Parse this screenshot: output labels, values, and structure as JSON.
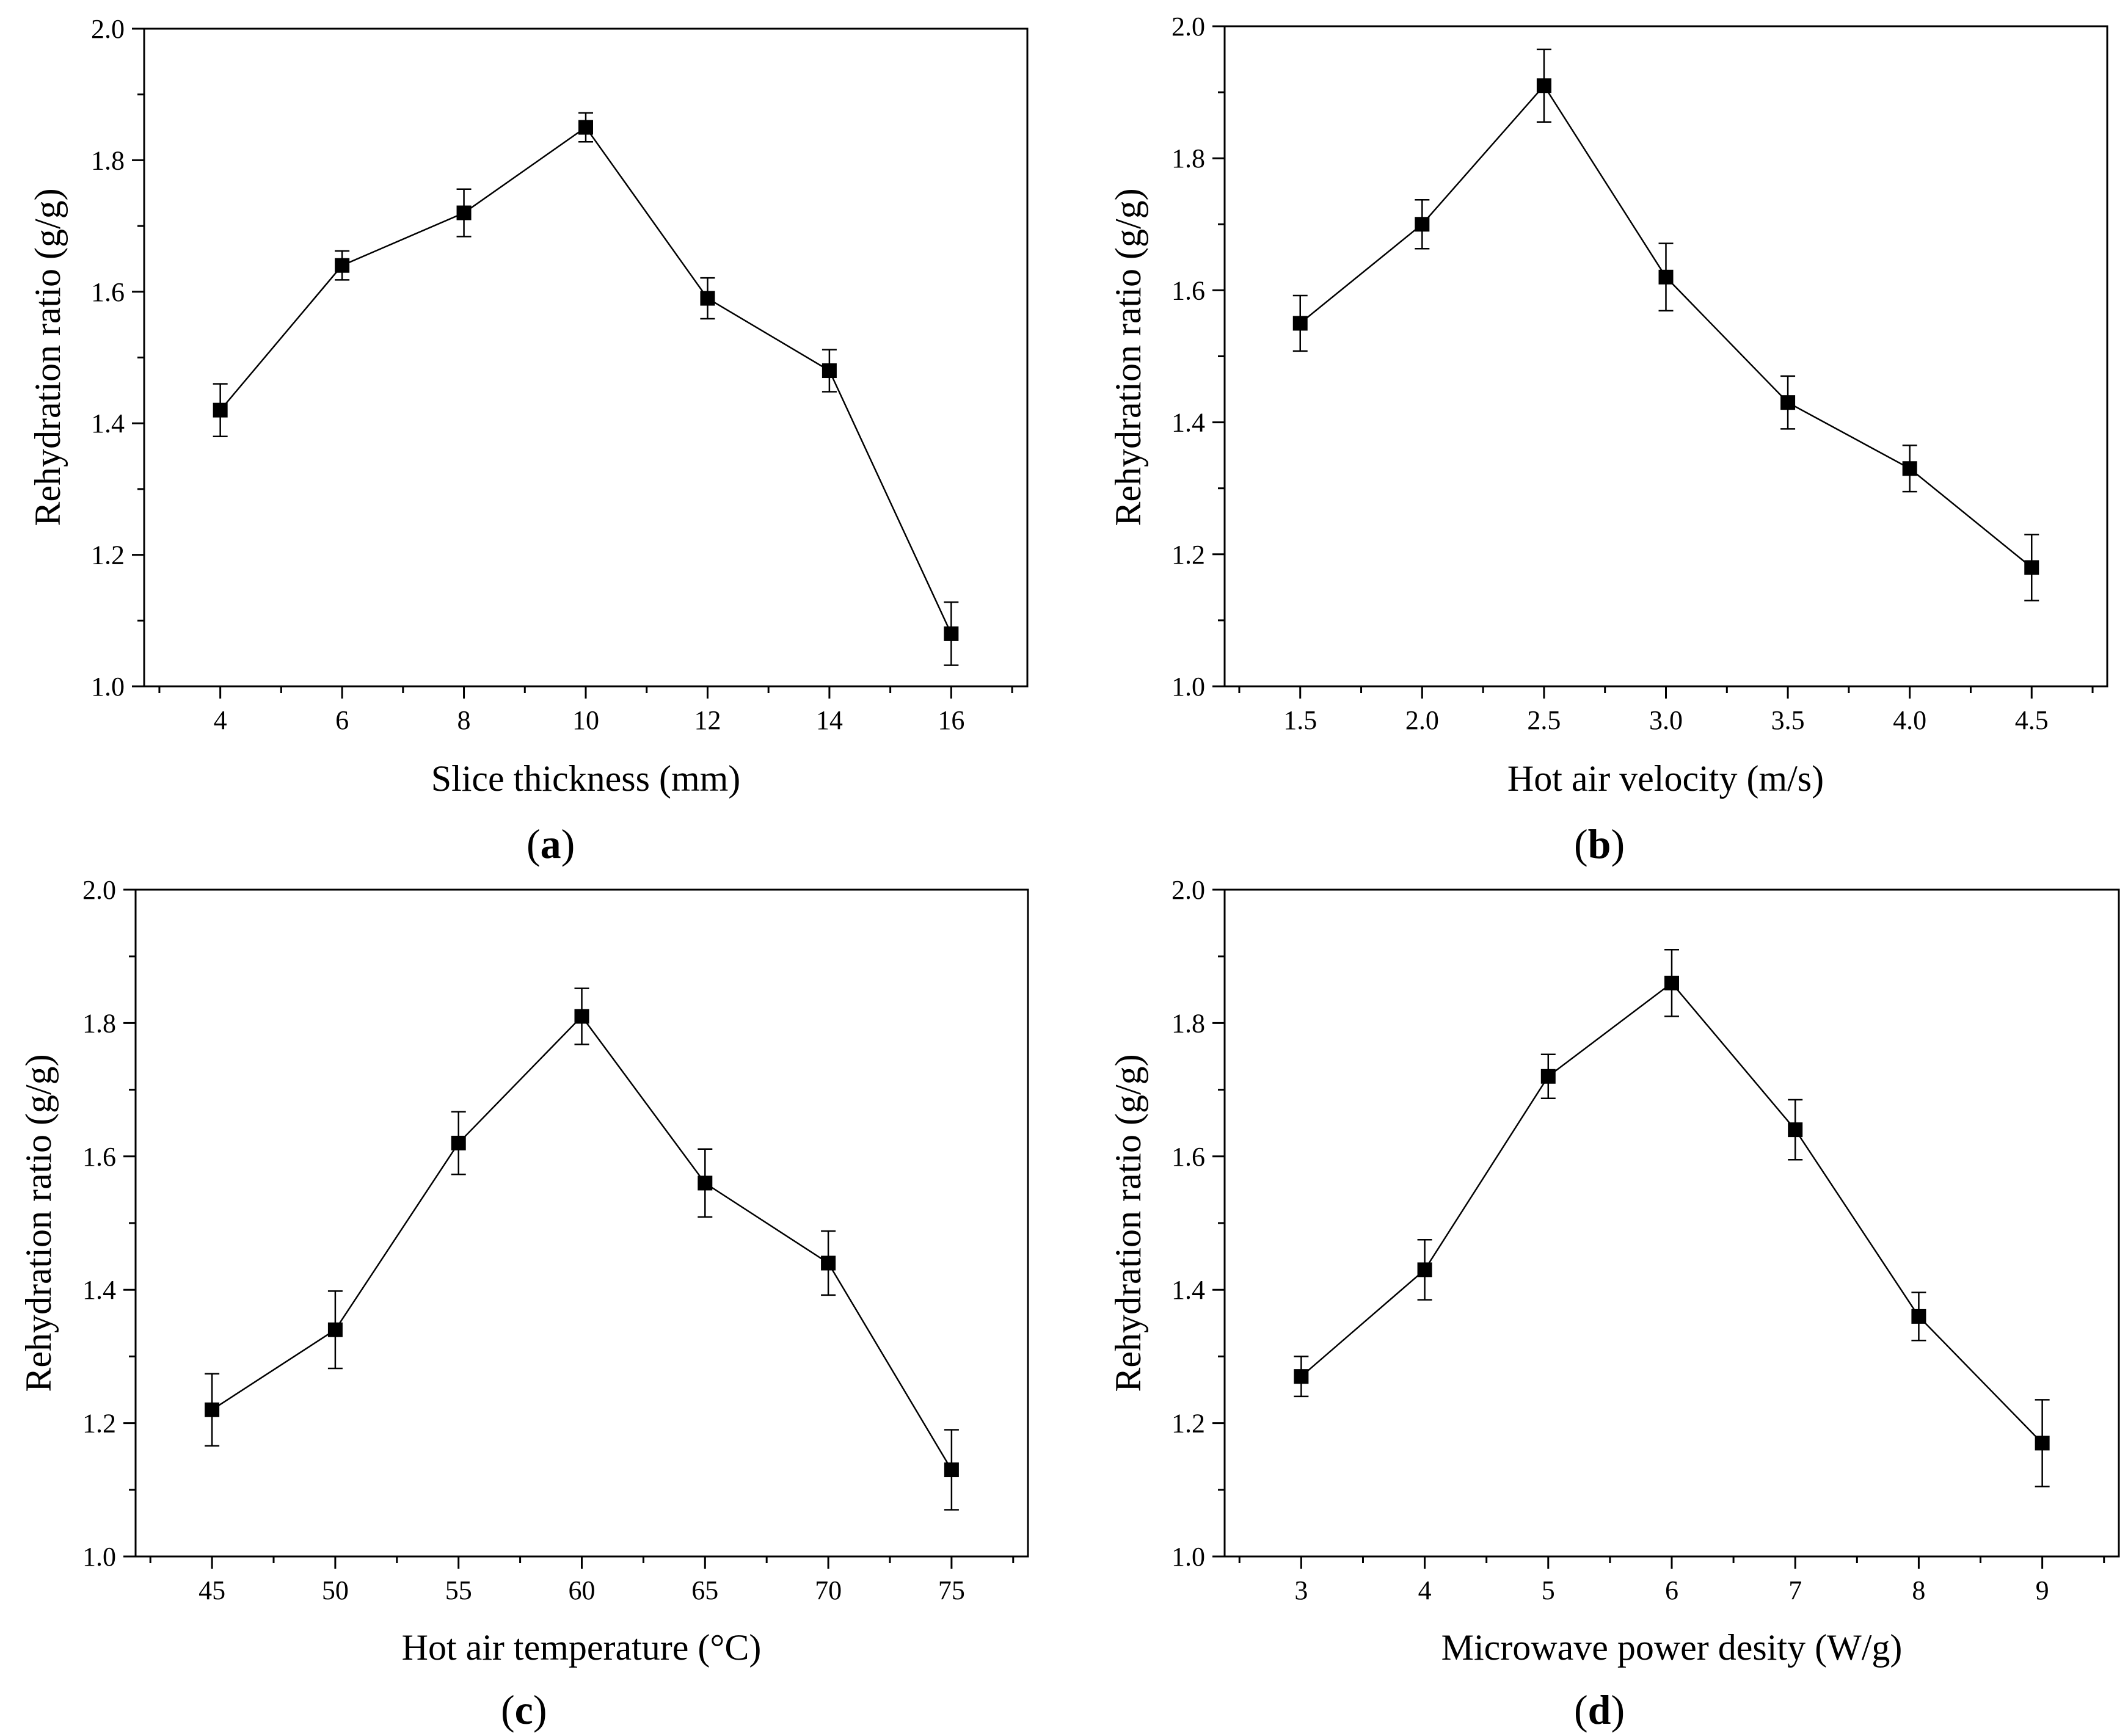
{
  "figure": {
    "colors": {
      "line": "#000000",
      "marker": "#000000",
      "background": "#ffffff"
    }
  },
  "chart_data": [
    {
      "type": "line",
      "panel_label": "a",
      "xlabel": "Slice thickness (mm)",
      "ylabel": "Rehydration ratio (g/g)",
      "x": [
        4,
        6,
        8,
        10,
        12,
        14,
        16
      ],
      "x_tick_labels": [
        "4",
        "6",
        "8",
        "10",
        "12",
        "14",
        "16"
      ],
      "xlim": [
        2.75,
        17.25
      ],
      "y": [
        1.42,
        1.64,
        1.72,
        1.85,
        1.59,
        1.48,
        1.08
      ],
      "error": [
        0.04,
        0.022,
        0.036,
        0.022,
        0.031,
        0.032,
        0.048
      ],
      "ylim": [
        1.0,
        2.0
      ],
      "y_ticks": [
        "1.0",
        "1.2",
        "1.4",
        "1.6",
        "1.8",
        "2.0"
      ],
      "marker": "square"
    },
    {
      "type": "line",
      "panel_label": "b",
      "xlabel": "Hot air velocity (m/s)",
      "ylabel": "Rehydration ratio (g/g)",
      "x": [
        1.5,
        2.0,
        2.5,
        3.0,
        3.5,
        4.0,
        4.5
      ],
      "x_tick_labels": [
        "1.5",
        "2.0",
        "2.5",
        "3.0",
        "3.5",
        "4.0",
        "4.5"
      ],
      "xlim": [
        1.19,
        4.81
      ],
      "y": [
        1.55,
        1.7,
        1.91,
        1.62,
        1.43,
        1.33,
        1.18
      ],
      "error": [
        0.042,
        0.037,
        0.055,
        0.051,
        0.04,
        0.035,
        0.05
      ],
      "ylim": [
        1.0,
        2.0
      ],
      "y_ticks": [
        "1.0",
        "1.2",
        "1.4",
        "1.6",
        "1.8",
        "2.0"
      ],
      "marker": "square"
    },
    {
      "type": "line",
      "panel_label": "c",
      "xlabel": "Hot air temperature (°C)",
      "ylabel": "Rehydration ratio (g/g)",
      "x": [
        45,
        50,
        55,
        60,
        65,
        70,
        75
      ],
      "x_tick_labels": [
        "45",
        "50",
        "55",
        "60",
        "65",
        "70",
        "75"
      ],
      "xlim": [
        41.9,
        78.1
      ],
      "y": [
        1.22,
        1.34,
        1.62,
        1.81,
        1.56,
        1.44,
        1.13
      ],
      "error": [
        0.054,
        0.058,
        0.047,
        0.042,
        0.051,
        0.048,
        0.06
      ],
      "ylim": [
        1.0,
        2.0
      ],
      "y_ticks": [
        "1.0",
        "1.2",
        "1.4",
        "1.6",
        "1.8",
        "2.0"
      ],
      "marker": "square"
    },
    {
      "type": "line",
      "panel_label": "d",
      "xlabel": "Microwave power desity (W/g)",
      "ylabel": "Rehydration ratio (g/g)",
      "x": [
        3,
        4,
        5,
        6,
        7,
        8,
        9
      ],
      "x_tick_labels": [
        "3",
        "4",
        "5",
        "6",
        "7",
        "8",
        "9"
      ],
      "xlim": [
        2.38,
        9.62
      ],
      "y": [
        1.27,
        1.43,
        1.72,
        1.86,
        1.64,
        1.36,
        1.17
      ],
      "error": [
        0.03,
        0.045,
        0.033,
        0.05,
        0.045,
        0.036,
        0.065
      ],
      "ylim": [
        1.0,
        2.0
      ],
      "y_ticks": [
        "1.0",
        "1.2",
        "1.4",
        "1.6",
        "1.8",
        "2.0"
      ],
      "marker": "square"
    }
  ]
}
